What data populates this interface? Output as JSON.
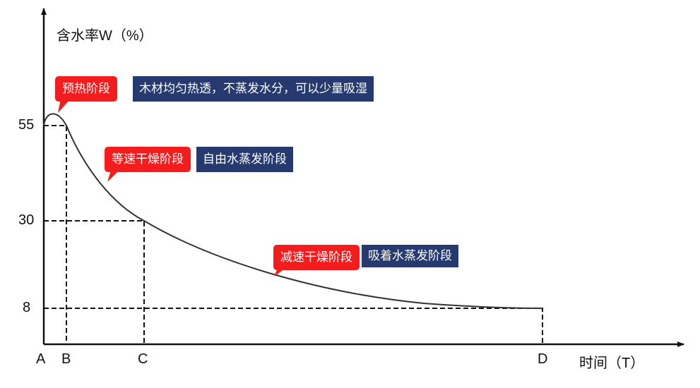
{
  "y_axis": {
    "label": "含水率W（%）",
    "ticks": [
      "55",
      "30",
      "8"
    ]
  },
  "x_axis": {
    "label": "时间（T）",
    "ticks": [
      "A",
      "B",
      "C",
      "D"
    ]
  },
  "stages": [
    {
      "name": "预热阶段",
      "description": "木材均匀热透，不蒸发水分，可以少量吸湿"
    },
    {
      "name": "等速干燥阶段",
      "description": "自由水蒸发阶段"
    },
    {
      "name": "减速干燥阶段",
      "description": "吸着水蒸发阶段"
    }
  ],
  "colors": {
    "stage_label": "#f41c1c",
    "description": "#263a70",
    "curve": "#333333"
  }
}
